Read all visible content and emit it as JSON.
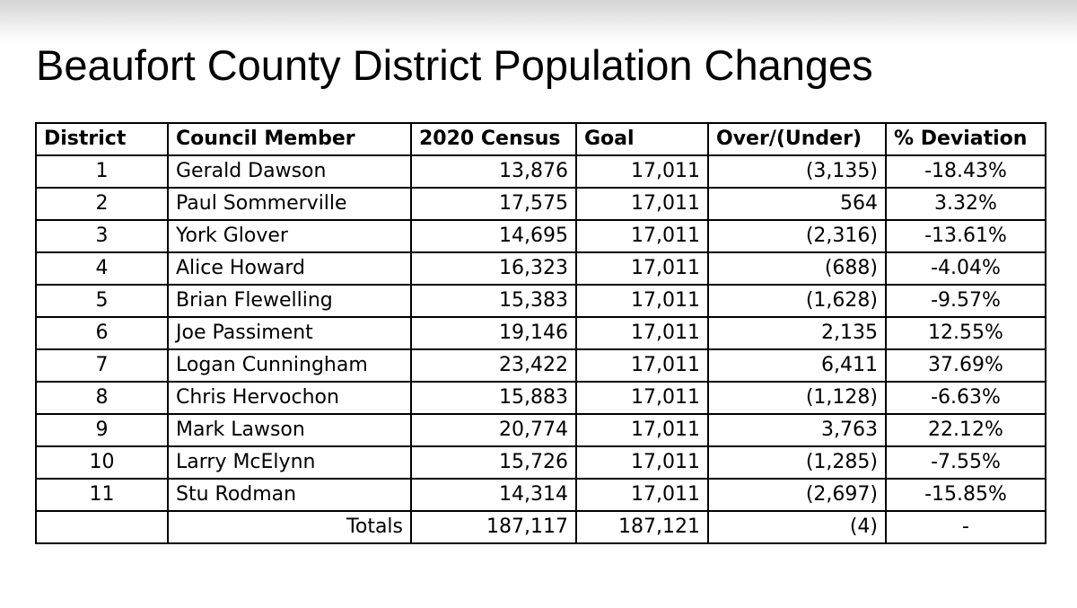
{
  "slide": {
    "title": "Beaufort County District Population Changes"
  },
  "table": {
    "headers": {
      "district": "District",
      "member": "Council Member",
      "census": "2020 Census",
      "goal": "Goal",
      "over_under": "Over/(Under)",
      "deviation": "% Deviation"
    },
    "rows": [
      {
        "district": "1",
        "member": "Gerald Dawson",
        "census": "13,876",
        "goal": "17,011",
        "over_under": "(3,135)",
        "deviation": "-18.43%"
      },
      {
        "district": "2",
        "member": "Paul Sommerville",
        "census": "17,575",
        "goal": "17,011",
        "over_under": "564",
        "deviation": "3.32%"
      },
      {
        "district": "3",
        "member": "York Glover",
        "census": "14,695",
        "goal": "17,011",
        "over_under": "(2,316)",
        "deviation": "-13.61%"
      },
      {
        "district": "4",
        "member": "Alice Howard",
        "census": "16,323",
        "goal": "17,011",
        "over_under": "(688)",
        "deviation": "-4.04%"
      },
      {
        "district": "5",
        "member": "Brian Flewelling",
        "census": "15,383",
        "goal": "17,011",
        "over_under": "(1,628)",
        "deviation": "-9.57%"
      },
      {
        "district": "6",
        "member": "Joe Passiment",
        "census": "19,146",
        "goal": "17,011",
        "over_under": "2,135",
        "deviation": "12.55%"
      },
      {
        "district": "7",
        "member": "Logan Cunningham",
        "census": "23,422",
        "goal": "17,011",
        "over_under": "6,411",
        "deviation": "37.69%"
      },
      {
        "district": "8",
        "member": "Chris Hervochon",
        "census": "15,883",
        "goal": "17,011",
        "over_under": "(1,128)",
        "deviation": "-6.63%"
      },
      {
        "district": "9",
        "member": "Mark Lawson",
        "census": "20,774",
        "goal": "17,011",
        "over_under": "3,763",
        "deviation": "22.12%"
      },
      {
        "district": "10",
        "member": "Larry McElynn",
        "census": "15,726",
        "goal": "17,011",
        "over_under": "(1,285)",
        "deviation": "-7.55%"
      },
      {
        "district": "11",
        "member": "Stu Rodman",
        "census": "14,314",
        "goal": "17,011",
        "over_under": "(2,697)",
        "deviation": "-15.85%"
      }
    ],
    "totals": {
      "district": "",
      "label": "Totals",
      "census": "187,117",
      "goal": "187,121",
      "over_under": "(4)",
      "deviation": "-"
    }
  }
}
